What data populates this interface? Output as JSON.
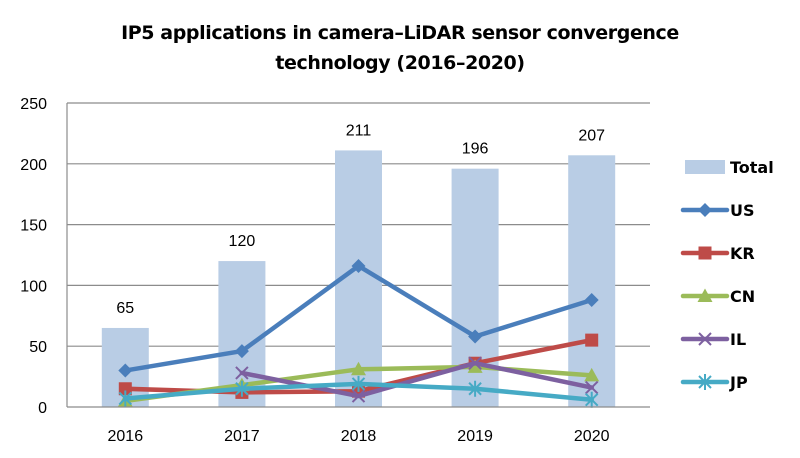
{
  "chart_data": {
    "type": "bar",
    "title": "IP5 applications in camera–LiDAR sensor convergence technology (2016–2020)",
    "title_lines": [
      "IP5 applications in camera–LiDAR sensor convergence",
      "technology (2016–2020)"
    ],
    "xlabel": "",
    "ylabel": "",
    "categories": [
      "2016",
      "2017",
      "2018",
      "2019",
      "2020"
    ],
    "ylim": [
      0,
      250
    ],
    "yticks": [
      0,
      50,
      100,
      150,
      200,
      250
    ],
    "grid": true,
    "legend_position": "right",
    "series": [
      {
        "name": "Total",
        "kind": "bar",
        "color": "#B9CDE5",
        "values": [
          65,
          120,
          211,
          196,
          207
        ],
        "data_labels": true
      },
      {
        "name": "US",
        "kind": "line",
        "marker": "diamond",
        "color": "#4A7EBB",
        "values": [
          30,
          46,
          116,
          58,
          88
        ]
      },
      {
        "name": "KR",
        "kind": "line",
        "marker": "square",
        "color": "#BE4B48",
        "values": [
          15,
          12,
          13,
          36,
          55
        ]
      },
      {
        "name": "CN",
        "kind": "line",
        "marker": "triangle",
        "color": "#9BBB59",
        "values": [
          5,
          18,
          31,
          33,
          26
        ]
      },
      {
        "name": "IL",
        "kind": "line",
        "marker": "x",
        "color": "#7D60A0",
        "values": [
          null,
          28,
          9,
          36,
          16
        ]
      },
      {
        "name": "JP",
        "kind": "line",
        "marker": "star",
        "color": "#46AAC5",
        "values": [
          7,
          15,
          19,
          15,
          6
        ]
      }
    ]
  }
}
